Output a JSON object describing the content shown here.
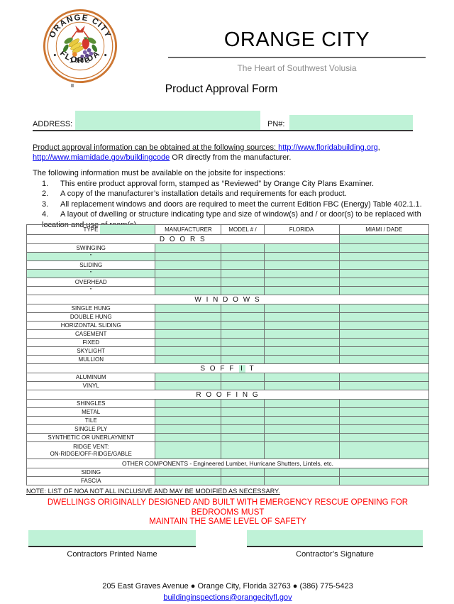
{
  "page": {
    "title_city": "ORANGE CITY",
    "tagline": "The Heart of Southwest Volusia",
    "form_title": "Product Approval Form"
  },
  "seal": {
    "top": "ORANGE CITY",
    "year": "1882",
    "bottom": "FLORIDA"
  },
  "address_row": {
    "address_label": "ADDRESS:",
    "pn_label": "PN#:"
  },
  "intro": {
    "lead": "Product approval information can be obtained at the following sources: ",
    "link1": "http://www.floridabuilding.org",
    "separator": ",",
    "link2": "http://www.miamidade.gov/buildingcode",
    "trail": " OR directly from the manufacturer."
  },
  "instructions": {
    "heading": "The following information must be available on the jobsite for inspections:",
    "items": [
      {
        "num": "1.",
        "text": "This entire product approval form, stamped as “Reviewed” by Orange City Plans Examiner."
      },
      {
        "num": "2.",
        "text": "A copy of the manufacturer’s installation details and requirements for each product."
      },
      {
        "num": "3.",
        "text": "All replacement windows and doors are required to meet the current Edition FBC (Energy) Table 402.1.1."
      },
      {
        "num": "4.",
        "text": "A layout of dwelling or structure indicating type and size of window(s) and / or door(s) to be replaced with"
      }
    ],
    "continuation": "location and use of room(s)."
  },
  "approval_table": {
    "headers": [
      "TYPE",
      "MANUFACTURER",
      "MODEL # /",
      "FLORIDA",
      "MIAMI / DADE"
    ],
    "sections": [
      {
        "title": "D O O R S",
        "right_green": true,
        "rows": [
          {
            "label": "SWINGING"
          },
          {
            "label": "”",
            "green_label": true
          },
          {
            "label": "SLIDING"
          },
          {
            "label": "”",
            "green_label": true
          },
          {
            "label": "OVERHEAD"
          },
          {
            "label": "”"
          }
        ]
      },
      {
        "title": "W I N D O W S",
        "rows": [
          {
            "label": "SINGLE HUNG"
          },
          {
            "label": "DOUBLE HUNG"
          },
          {
            "label": "HORIZONTAL SLIDING"
          },
          {
            "label": "CASEMENT"
          },
          {
            "label": "FIXED"
          },
          {
            "label": "SKYLIGHT"
          },
          {
            "label": "MULLION"
          }
        ]
      },
      {
        "title_pre": "S O F F",
        "title_hl": "I",
        "title_post": "T",
        "rows": [
          {
            "label": "ALUMINUM"
          },
          {
            "label": "VINYL"
          }
        ]
      },
      {
        "title": "R O O F I N G",
        "rows": [
          {
            "label": "SHINGLES"
          },
          {
            "label": "METAL"
          },
          {
            "label": "TILE"
          },
          {
            "label": "SINGLE PLY"
          },
          {
            "label": "SYNTHETIC OR UNERLAYMENT"
          },
          {
            "label_line1": "RIDGE VENT:",
            "label_line2": "ON-RIDGE/OFF-RIDGE/GABLE",
            "tall": true
          }
        ]
      },
      {
        "title": "OTHER COMPONENTS -  Engineered Lumber, Hurricane Shutters, Lintels, etc.",
        "plain": true,
        "rows": [
          {
            "label": "SIDING"
          },
          {
            "label": "FASCIA"
          }
        ]
      }
    ]
  },
  "note": "NOTE: LIST OF NOA NOT ALL INCLUSIVE AND MAY BE MODIFIED AS NECESSARY.",
  "warning": {
    "line1": "DWELLINGS ORIGINALLY DESIGNED AND BUILT WITH EMERGENCY RESCUE OPENING FOR BEDROOMS MUST",
    "line2": "MAINTAIN THE SAME LEVEL OF SAFETY"
  },
  "signatures": {
    "printed_name_label": "Contractors Printed Name",
    "signature_label": "Contractor’s Signature"
  },
  "footer": {
    "address_line": "205 East Graves Avenue ● Orange City, Florida 32763 ● (386) 775-5423",
    "email": "buildinginspections@orangecityfl.gov"
  },
  "colors": {
    "field_green": "#bff2d7",
    "warning_red": "#ff0000",
    "link_blue": "#0000ee"
  }
}
